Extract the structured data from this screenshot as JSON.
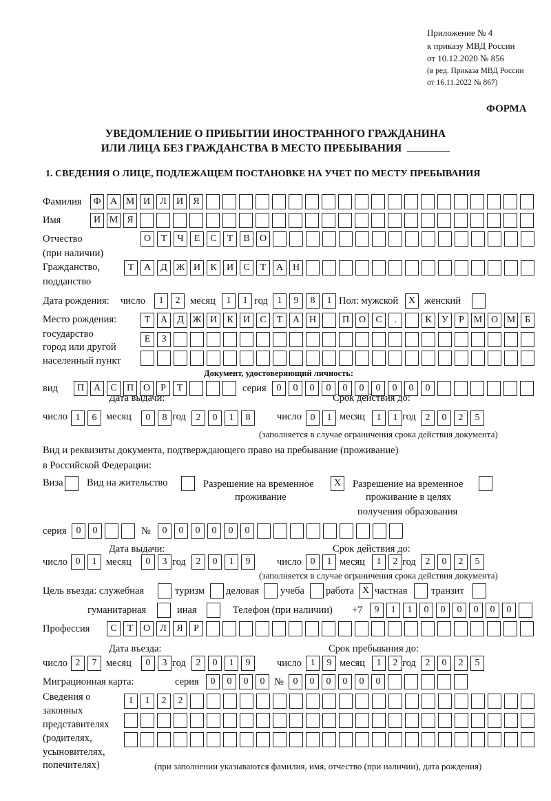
{
  "header": {
    "line1": "Приложение № 4",
    "line2": "к приказу МВД России",
    "line3": "от 10.12.2020 № 856",
    "line4": "(в ред. Приказа МВД России",
    "line5": "от 16.11.2022 № 867)",
    "form_label": "ФОРМА"
  },
  "title": {
    "line1": "УВЕДОМЛЕНИЕ О ПРИБЫТИИ ИНОСТРАННОГО ГРАЖДАНИНА",
    "line2": "ИЛИ ЛИЦА БЕЗ ГРАЖДАНСТВА В МЕСТО ПРЕБЫВАНИЯ"
  },
  "section1": {
    "heading": "1. СВЕДЕНИЯ О ЛИЦЕ, ПОДЛЕЖАЩЕМ ПОСТАНОВКЕ НА УЧЕТ ПО МЕСТУ ПРЕБЫВАНИЯ",
    "surname": {
      "label": "Фамилия",
      "value": "ФАМИЛИЯ"
    },
    "name": {
      "label": "Имя",
      "value": "ИМЯ"
    },
    "patronymic": {
      "label": "Отчество",
      "label2": "(при наличии)",
      "value": "ОТЧЕСТВО"
    },
    "citizenship": {
      "label": "Гражданство,",
      "label2": "подданство",
      "value": "ТАДЖИКИСТАН"
    },
    "birth_date": {
      "label": "Дата рождения:",
      "day_label": "число",
      "day": "12",
      "month_label": "месяц",
      "month": "11",
      "year_label": "год",
      "year": "1981"
    },
    "sex": {
      "label": "Пол: мужской",
      "male": "X",
      "female_label": "женский",
      "female": ""
    },
    "birth_place": {
      "label1": "Место рождения:",
      "label2": "государство",
      "label3": "город или другой",
      "label4": "населенный пункт",
      "row1": "ТАДЖИКИСТАН ПОС. КУРМОМБ",
      "row2": "ЕЗ",
      "row3": ""
    },
    "id_doc": {
      "heading": "Документ, удостоверяющий личность:",
      "kind_label": "вид",
      "kind": "ПАСПОРТ",
      "series_label": "серия",
      "series": "0000",
      "number_label": "№",
      "number": "000000",
      "issue_label": "Дата выдачи:",
      "issue_day": "16",
      "issue_month": "08",
      "issue_year": "2018",
      "valid_label": "Срок действия до:",
      "valid_day": "01",
      "valid_month": "11",
      "valid_year": "2025",
      "note": "(заполняется в случае ограничения срока действия документа)"
    },
    "right_doc": {
      "heading1": "Вид и реквизиты документа, подтверждающего право на пребывание (проживание)",
      "heading2": "в Российской Федерации:",
      "visa_label": "Виза",
      "visa": "",
      "residence_label": "Вид на жительство",
      "residence": "",
      "trp_label1": "Разрешение на временное",
      "trp_label2": "проживание",
      "trp": "X",
      "trp_edu_label1": "Разрешение на временное",
      "trp_edu_label2": "проживание в целях",
      "trp_edu_label3": "получения образования",
      "trp_edu": "",
      "series_label": "серия",
      "series": "00",
      "number_label": "№",
      "number": "000000",
      "issue_label": "Дата выдачи:",
      "issue_day": "01",
      "issue_month": "03",
      "issue_year": "2019",
      "valid_label": "Срок действия до:",
      "valid_day": "01",
      "valid_month": "12",
      "valid_year": "2025",
      "note": "(заполняется в случае ограничения срока действия документа)"
    },
    "purpose": {
      "label": "Цель въезда: служебная",
      "service": "",
      "tourism_label": "туризм",
      "tourism": "",
      "business_label": "деловая",
      "business": "",
      "study_label": "учеба",
      "study": "",
      "work_label": "работа",
      "work": "X",
      "private_label": "частная",
      "private": "",
      "transit_label": "транзит",
      "transit": "",
      "humanitarian_label": "гуманитарная",
      "humanitarian": "",
      "other_label": "иная",
      "other": ""
    },
    "phone": {
      "label": "Телефон (при наличии)",
      "prefix": "+7",
      "value": "911000000"
    },
    "profession": {
      "label": "Профессия",
      "value": "СТОЛЯР"
    },
    "entry": {
      "entry_label": "Дата въезда:",
      "entry_day": "27",
      "entry_month": "03",
      "entry_year": "2019",
      "stay_label": "Срок пребывания до:",
      "stay_day": "19",
      "stay_month": "12",
      "stay_year": "2025"
    },
    "migration_card": {
      "label": "Миграционная карта:",
      "series_label": "серия",
      "series": "0000",
      "number_label": "№",
      "number": "000000"
    },
    "representatives": {
      "label1": "Сведения о",
      "label2": "законных",
      "label3": "представителях",
      "label4": "(родителях,",
      "label5": "усыновителях,",
      "label6": "попечителях)",
      "row1": "1122",
      "row2": "",
      "row3": "",
      "note": "(при заполнении указываются фамилия, имя, отчество (при наличии), дата рождения)"
    },
    "common": {
      "day": "число",
      "month": "месяц",
      "year": "год"
    }
  }
}
